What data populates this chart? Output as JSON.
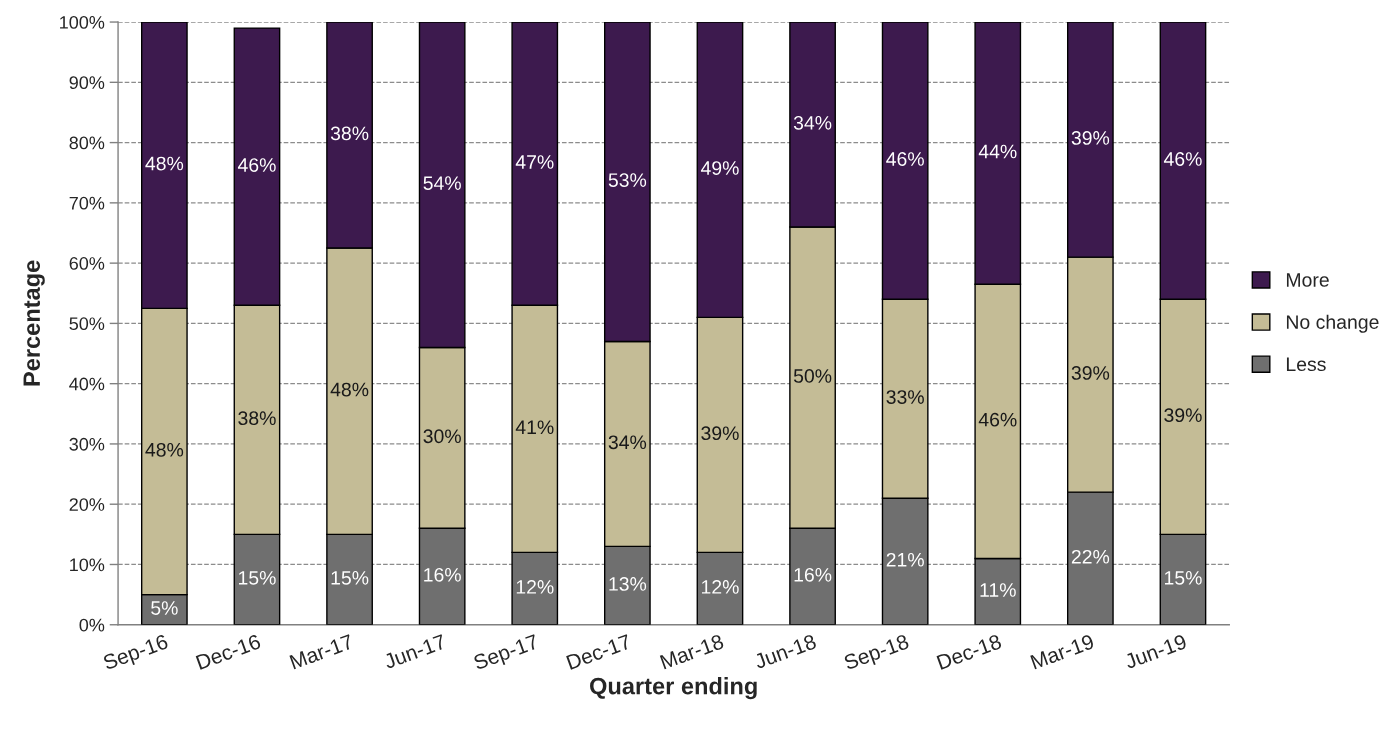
{
  "chart_data": {
    "type": "bar",
    "stacked": true,
    "xlabel": "Quarter ending",
    "ylabel": "Percentage",
    "categories": [
      "Sep-16",
      "Dec-16",
      "Mar-17",
      "Jun-17",
      "Sep-17",
      "Dec-17",
      "Mar-18",
      "Jun-18",
      "Sep-18",
      "Dec-18",
      "Mar-19",
      "Jun-19"
    ],
    "series": [
      {
        "name": "Less",
        "color": "#6f6f6f",
        "values": [
          5,
          15,
          15,
          16,
          12,
          13,
          12,
          16,
          21,
          11,
          22,
          15
        ],
        "value_labels": [
          "5%",
          "15%",
          "15%",
          "16%",
          "12%",
          "13%",
          "12%",
          "16%",
          "21%",
          "11%",
          "22%",
          "15%"
        ]
      },
      {
        "name": "No change",
        "color": "#c4bc96",
        "values": [
          47.5,
          38,
          47.5,
          30,
          41,
          34,
          39,
          50,
          33,
          45.5,
          39,
          39
        ],
        "value_labels": [
          "48%",
          "38%",
          "48%",
          "30%",
          "41%",
          "34%",
          "39%",
          "50%",
          "33%",
          "46%",
          "39%",
          "39%"
        ]
      },
      {
        "name": "More",
        "color": "#3d1a4e",
        "values": [
          47.5,
          46,
          37.5,
          54,
          47,
          53,
          49,
          34,
          46,
          43.5,
          39,
          46
        ],
        "value_labels": [
          "48%",
          "46%",
          "38%",
          "54%",
          "47%",
          "53%",
          "49%",
          "34%",
          "46%",
          "44%",
          "39%",
          "46%"
        ]
      }
    ],
    "ylim": [
      0,
      100
    ],
    "yticks": [
      {
        "value": 0,
        "label": "0%"
      },
      {
        "value": 10,
        "label": "10%"
      },
      {
        "value": 20,
        "label": "20%"
      },
      {
        "value": 30,
        "label": "30%"
      },
      {
        "value": 40,
        "label": "40%"
      },
      {
        "value": 50,
        "label": "50%"
      },
      {
        "value": 60,
        "label": "60%"
      },
      {
        "value": 70,
        "label": "70%"
      },
      {
        "value": 80,
        "label": "80%"
      },
      {
        "value": 90,
        "label": "90%"
      },
      {
        "value": 100,
        "label": "100%"
      }
    ],
    "grid": "y",
    "legend": "right"
  }
}
